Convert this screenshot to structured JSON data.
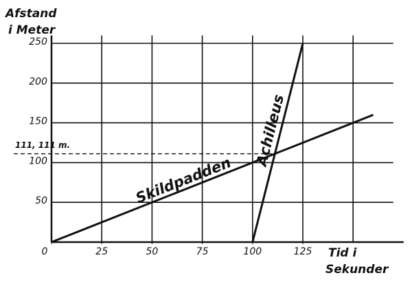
{
  "chart_data": {
    "type": "line",
    "y_label": [
      "Afstand",
      "i Meter"
    ],
    "x_label": [
      "Tid i",
      "Sekunder"
    ],
    "xlim": [
      0,
      170
    ],
    "ylim": [
      0,
      260
    ],
    "xticks": [
      0,
      25,
      50,
      75,
      100,
      125
    ],
    "yticks": [
      50,
      100,
      150,
      200,
      250
    ],
    "x_grid": [
      25,
      50,
      75,
      100,
      125,
      150
    ],
    "grid": true,
    "series": [
      {
        "name": "Skildpadden",
        "color": "#111111",
        "x": [
          0,
          160
        ],
        "values": [
          0,
          160
        ]
      },
      {
        "name": "Achilleus",
        "color": "#111111",
        "x": [
          100,
          125
        ],
        "values": [
          0,
          250
        ]
      }
    ],
    "annotation": {
      "value": 111.111,
      "x": 111.111,
      "label": "111, 111 m."
    }
  }
}
